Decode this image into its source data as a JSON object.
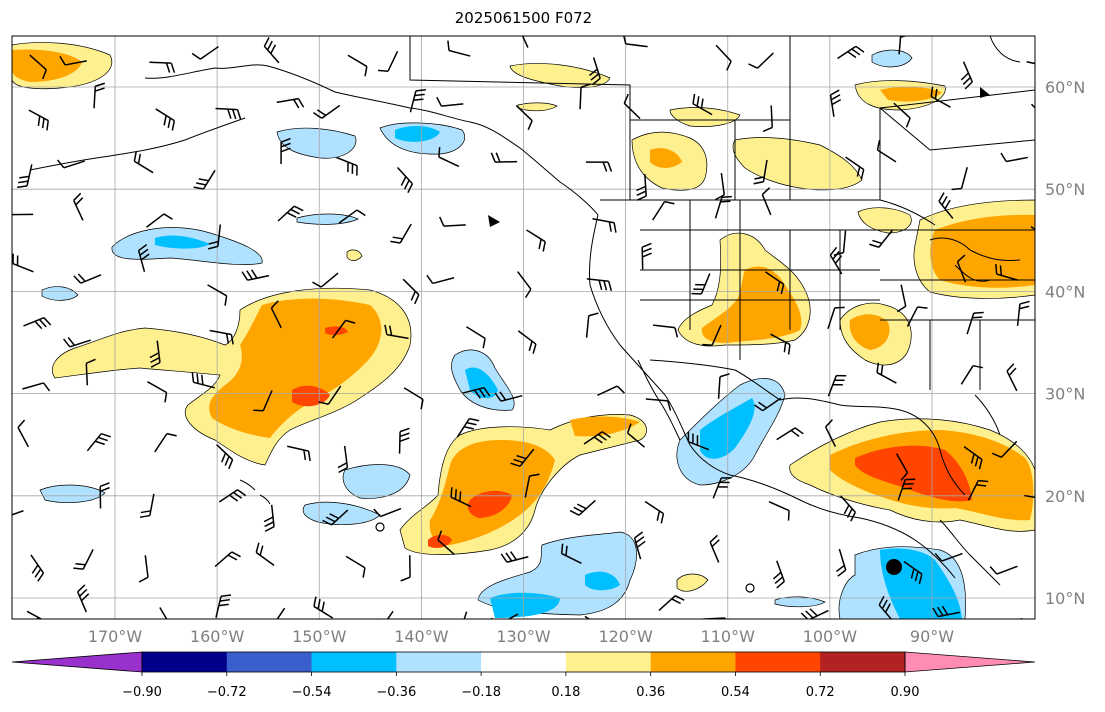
{
  "title": "2025061500 F072",
  "map": {
    "lon_range": [
      -180,
      -80
    ],
    "lat_range": [
      8,
      65
    ],
    "lat_ticks": [
      {
        "value": 10,
        "label": "10°N"
      },
      {
        "value": 20,
        "label": "20°N"
      },
      {
        "value": 30,
        "label": "30°N"
      },
      {
        "value": 40,
        "label": "40°N"
      },
      {
        "value": 50,
        "label": "50°N"
      },
      {
        "value": 60,
        "label": "60°N"
      }
    ],
    "lon_ticks": [
      {
        "value": -170,
        "label": "170°W"
      },
      {
        "value": -160,
        "label": "160°W"
      },
      {
        "value": -150,
        "label": "150°W"
      },
      {
        "value": -140,
        "label": "140°W"
      },
      {
        "value": -130,
        "label": "130°W"
      },
      {
        "value": -120,
        "label": "120°W"
      },
      {
        "value": -110,
        "label": "110°W"
      },
      {
        "value": -100,
        "label": "100°W"
      },
      {
        "value": -90,
        "label": "90°W"
      }
    ],
    "grid": true,
    "markers": [
      {
        "name": "filled-dot",
        "lon": -93.5,
        "lat": 13
      }
    ]
  },
  "colorbar": {
    "orientation": "horizontal",
    "extend": "both",
    "colors": [
      "#9932cc",
      "#00008b",
      "#3a5fcd",
      "#00bfff",
      "#b0e2ff",
      "#ffffff",
      "#fff08f",
      "#ffa500",
      "#ff4500",
      "#b22222",
      "#ff8cb4"
    ],
    "boundaries": [
      -0.9,
      -0.72,
      -0.54,
      -0.36,
      -0.18,
      0.18,
      0.36,
      0.54,
      0.72,
      0.9
    ],
    "tick_labels": [
      "−0.90",
      "−0.72",
      "−0.54",
      "−0.36",
      "−0.18",
      "0.18",
      "0.36",
      "0.54",
      "0.72",
      "0.90"
    ]
  }
}
